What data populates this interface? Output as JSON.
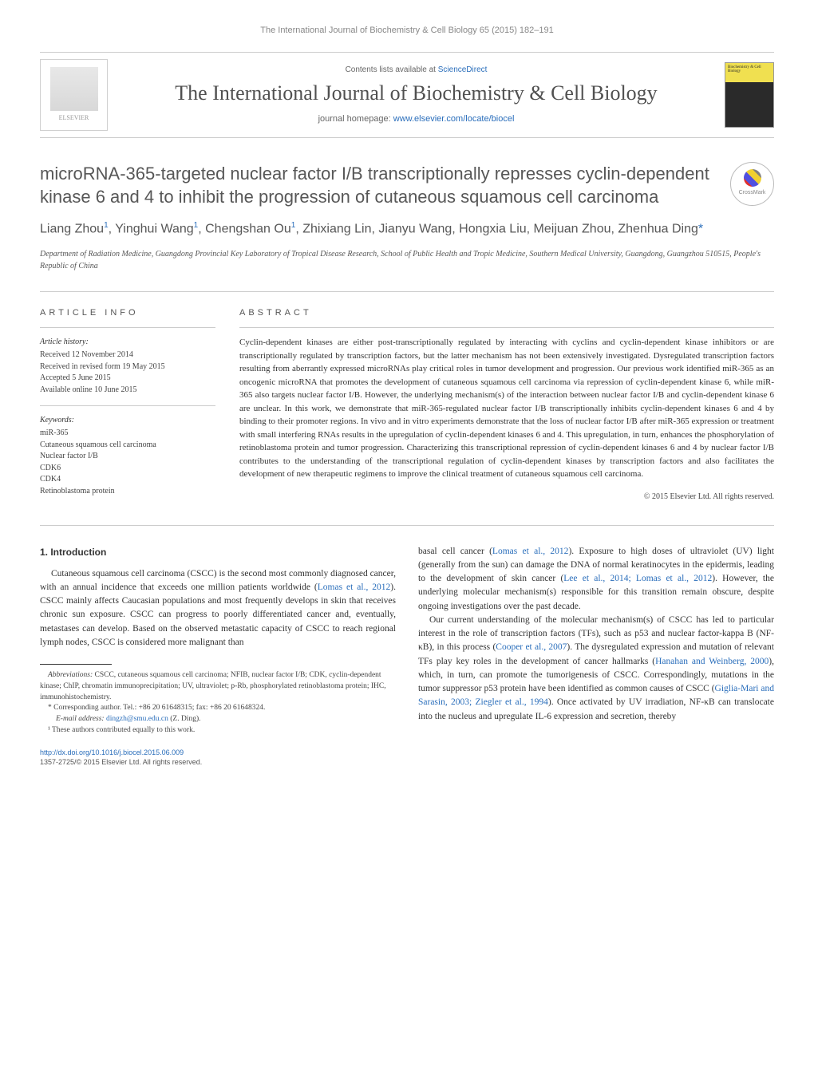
{
  "header": {
    "running_head": "The International Journal of Biochemistry & Cell Biology 65 (2015) 182–191",
    "contents_prefix": "Contents lists available at ",
    "contents_link": "ScienceDirect",
    "journal_name": "The International Journal of Biochemistry & Cell Biology",
    "homepage_prefix": "journal homepage: ",
    "homepage_url": "www.elsevier.com/locate/biocel",
    "elsevier_label": "ELSEVIER",
    "crossmark_label": "CrossMark",
    "cover_text": "Biochemistry &\nCell Biology"
  },
  "article": {
    "title": "microRNA-365-targeted nuclear factor I/B transcriptionally represses cyclin-dependent kinase 6 and 4 to inhibit the progression of cutaneous squamous cell carcinoma",
    "authors_html": "Liang Zhou<sup>1</sup>, Yinghui Wang<sup>1</sup>, Chengshan Ou<sup>1</sup>, Zhixiang Lin, Jianyu Wang, Hongxia Liu, Meijuan Zhou, Zhenhua Ding<a>*</a>",
    "affiliation": "Department of Radiation Medicine, Guangdong Provincial Key Laboratory of Tropical Disease Research, School of Public Health and Tropic Medicine, Southern Medical University, Guangdong, Guangzhou 510515, People's Republic of China"
  },
  "info": {
    "section_label": "ARTICLE INFO",
    "history_label": "Article history:",
    "history": [
      "Received 12 November 2014",
      "Received in revised form 19 May 2015",
      "Accepted 5 June 2015",
      "Available online 10 June 2015"
    ],
    "keywords_label": "Keywords:",
    "keywords": [
      "miR-365",
      "Cutaneous squamous cell carcinoma",
      "Nuclear factor I/B",
      "CDK6",
      "CDK4",
      "Retinoblastoma protein"
    ]
  },
  "abstract": {
    "label": "ABSTRACT",
    "text": "Cyclin-dependent kinases are either post-transcriptionally regulated by interacting with cyclins and cyclin-dependent kinase inhibitors or are transcriptionally regulated by transcription factors, but the latter mechanism has not been extensively investigated. Dysregulated transcription factors resulting from aberrantly expressed microRNAs play critical roles in tumor development and progression. Our previous work identified miR-365 as an oncogenic microRNA that promotes the development of cutaneous squamous cell carcinoma via repression of cyclin-dependent kinase 6, while miR-365 also targets nuclear factor I/B. However, the underlying mechanism(s) of the interaction between nuclear factor I/B and cyclin-dependent kinase 6 are unclear. In this work, we demonstrate that miR-365-regulated nuclear factor I/B transcriptionally inhibits cyclin-dependent kinases 6 and 4 by binding to their promoter regions. In vivo and in vitro experiments demonstrate that the loss of nuclear factor I/B after miR-365 expression or treatment with small interfering RNAs results in the upregulation of cyclin-dependent kinases 6 and 4. This upregulation, in turn, enhances the phosphorylation of retinoblastoma protein and tumor progression. Characterizing this transcriptional repression of cyclin-dependent kinases 6 and 4 by nuclear factor I/B contributes to the understanding of the transcriptional regulation of cyclin-dependent kinases by transcription factors and also facilitates the development of new therapeutic regimens to improve the clinical treatment of cutaneous squamous cell carcinoma.",
    "copyright": "© 2015 Elsevier Ltd. All rights reserved."
  },
  "body": {
    "intro_heading": "1. Introduction",
    "col1_p1": "Cutaneous squamous cell carcinoma (CSCC) is the second most commonly diagnosed cancer, with an annual incidence that exceeds one million patients worldwide (",
    "col1_p1_cite": "Lomas et al., 2012",
    "col1_p1_cont": "). CSCC mainly affects Caucasian populations and most frequently develops in skin that receives chronic sun exposure. CSCC can progress to poorly differentiated cancer and, eventually, metastases can develop. Based on the observed metastatic capacity of CSCC to reach regional lymph nodes, CSCC is considered more malignant than",
    "col2_p1a": "basal cell cancer (",
    "col2_p1_cite1": "Lomas et al., 2012",
    "col2_p1b": "). Exposure to high doses of ultraviolet (UV) light (generally from the sun) can damage the DNA of normal keratinocytes in the epidermis, leading to the development of skin cancer (",
    "col2_p1_cite2": "Lee et al., 2014; Lomas et al., 2012",
    "col2_p1c": "). However, the underlying molecular mechanism(s) responsible for this transition remain obscure, despite ongoing investigations over the past decade.",
    "col2_p2a": "Our current understanding of the molecular mechanism(s) of CSCC has led to particular interest in the role of transcription factors (TFs), such as p53 and nuclear factor-kappa B (NF-κB), in this process (",
    "col2_p2_cite1": "Cooper et al., 2007",
    "col2_p2b": "). The dysregulated expression and mutation of relevant TFs play key roles in the development of cancer hallmarks (",
    "col2_p2_cite2": "Hanahan and Weinberg, 2000",
    "col2_p2c": "), which, in turn, can promote the tumorigenesis of CSCC. Correspondingly, mutations in the tumor suppressor p53 protein have been identified as common causes of CSCC (",
    "col2_p2_cite3": "Giglia-Mari and Sarasin, 2003; Ziegler et al., 1994",
    "col2_p2d": "). Once activated by UV irradiation, NF-κB can translocate into the nucleus and upregulate IL-6 expression and secretion, thereby"
  },
  "footnotes": {
    "abbrev_label": "Abbreviations:",
    "abbrev_text": " CSCC, cutaneous squamous cell carcinoma; NFIB, nuclear factor I/B; CDK, cyclin-dependent kinase; ChIP, chromatin immunoprecipitation; UV, ultraviolet; p-Rb, phosphorylated retinoblastoma protein; IHC, immunohistochemistry.",
    "corresp": "* Corresponding author. Tel.: +86 20 61648315; fax: +86 20 61648324.",
    "email_label": "E-mail address: ",
    "email": "dingzh@smu.edu.cn",
    "email_suffix": " (Z. Ding).",
    "equal": "¹ These authors contributed equally to this work."
  },
  "doi": {
    "url": "http://dx.doi.org/10.1016/j.biocel.2015.06.009",
    "issn_line": "1357-2725/© 2015 Elsevier Ltd. All rights reserved."
  }
}
